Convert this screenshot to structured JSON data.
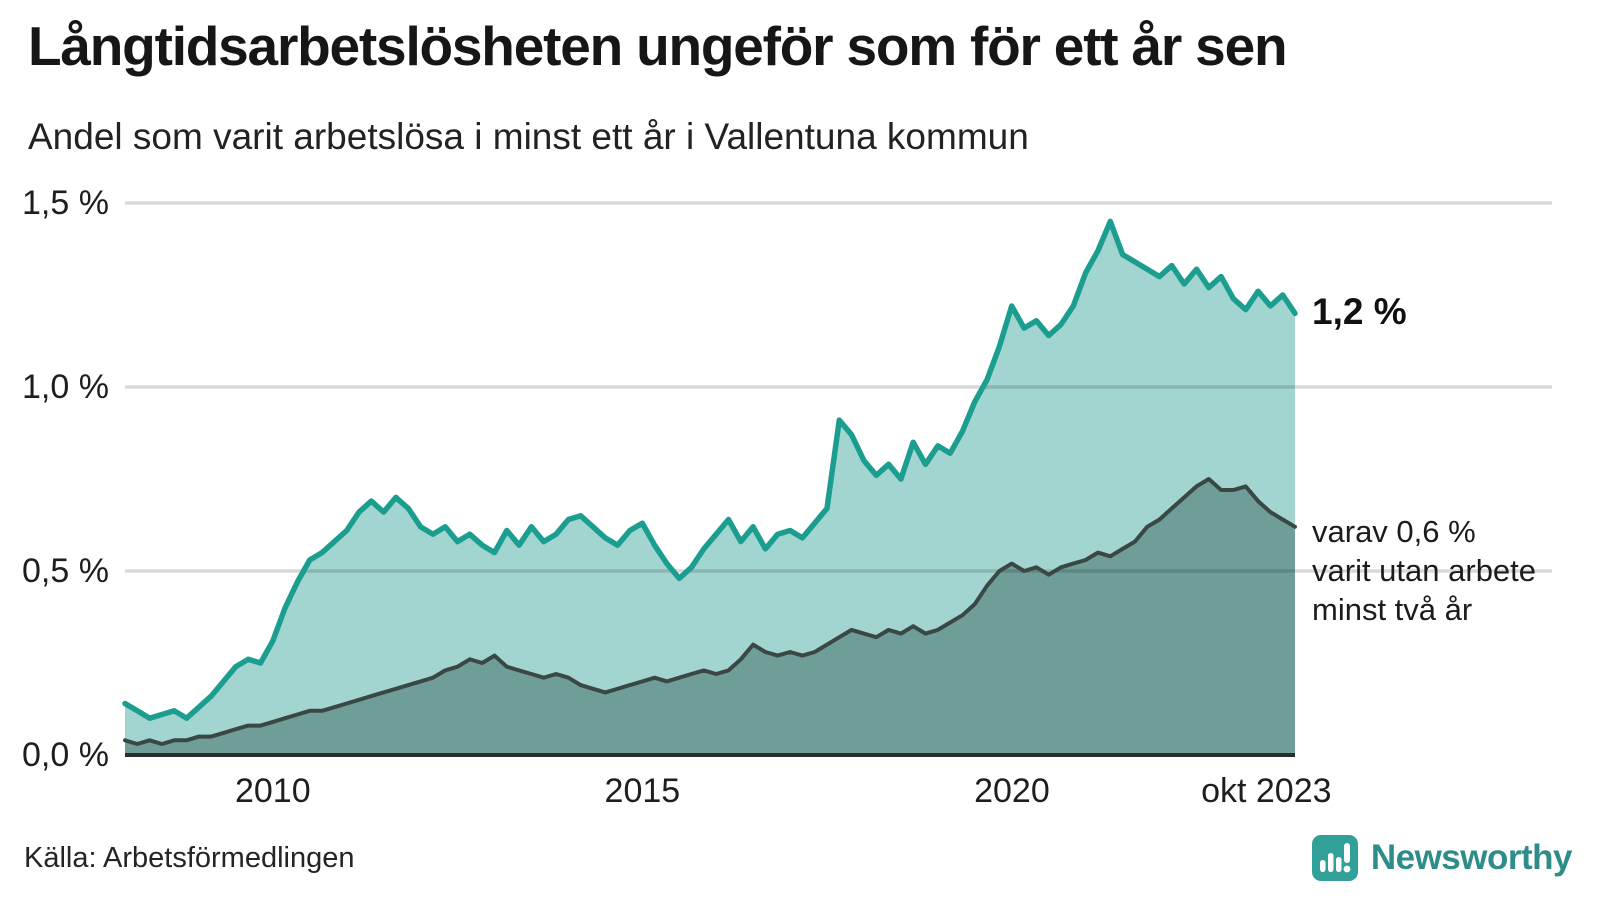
{
  "header": {
    "title": "Långtidsarbetslösheten ungeför som för ett år sen",
    "subtitle": "Andel som varit arbetslösa i minst ett år i Vallentuna kommun"
  },
  "chart_data": {
    "type": "area",
    "title": "Långtidsarbetslösheten ungeför som för ett år sen",
    "subtitle": "Andel som varit arbetslösa i minst ett år i Vallentuna kommun",
    "unit": "%",
    "grid": "horizontal",
    "legend": "none",
    "ylim": [
      0,
      1.5
    ],
    "x_domain_years": [
      2008.0,
      2023.83
    ],
    "y_ticks": [
      {
        "value": 0.0,
        "label": "0,0 %"
      },
      {
        "value": 0.5,
        "label": "0,5 %"
      },
      {
        "value": 1.0,
        "label": "1,0 %"
      },
      {
        "value": 1.5,
        "label": "1,5 %"
      }
    ],
    "x_ticks": [
      {
        "value": 2010,
        "label": "2010"
      },
      {
        "value": 2015,
        "label": "2015"
      },
      {
        "value": 2020,
        "label": "2020"
      },
      {
        "value": 2023.83,
        "label": "okt 2023",
        "align": "end"
      }
    ],
    "colors": {
      "total_line": "#1b9e8f",
      "total_fill": "#a3d5d0",
      "subset_line": "#3a4845",
      "subset_fill": "#6f9e99",
      "gridline": "rgba(0,0,0,0.15)",
      "baseline": "#2b2b2b"
    },
    "series": [
      {
        "name": "Arbetslösa minst ett år",
        "role": "total",
        "points_every_n_months": 2,
        "start": "2008-01",
        "end": "2023-10",
        "values": [
          0.14,
          0.12,
          0.1,
          0.11,
          0.12,
          0.1,
          0.13,
          0.16,
          0.2,
          0.24,
          0.26,
          0.25,
          0.31,
          0.4,
          0.47,
          0.53,
          0.55,
          0.58,
          0.61,
          0.66,
          0.69,
          0.66,
          0.7,
          0.67,
          0.62,
          0.6,
          0.62,
          0.58,
          0.6,
          0.57,
          0.55,
          0.61,
          0.57,
          0.62,
          0.58,
          0.6,
          0.64,
          0.65,
          0.62,
          0.59,
          0.57,
          0.61,
          0.63,
          0.57,
          0.52,
          0.48,
          0.51,
          0.56,
          0.6,
          0.64,
          0.58,
          0.62,
          0.56,
          0.6,
          0.61,
          0.59,
          0.63,
          0.67,
          0.91,
          0.87,
          0.8,
          0.76,
          0.79,
          0.75,
          0.85,
          0.79,
          0.84,
          0.82,
          0.88,
          0.96,
          1.02,
          1.11,
          1.22,
          1.16,
          1.18,
          1.14,
          1.17,
          1.22,
          1.31,
          1.37,
          1.45,
          1.36,
          1.34,
          1.32,
          1.3,
          1.33,
          1.28,
          1.32,
          1.27,
          1.3,
          1.24,
          1.21,
          1.26,
          1.22,
          1.25,
          1.2
        ]
      },
      {
        "name": "Varav utan arbete minst två år",
        "role": "subset",
        "points_every_n_months": 2,
        "start": "2008-01",
        "end": "2023-10",
        "values": [
          0.04,
          0.03,
          0.04,
          0.03,
          0.04,
          0.04,
          0.05,
          0.05,
          0.06,
          0.07,
          0.08,
          0.08,
          0.09,
          0.1,
          0.11,
          0.12,
          0.12,
          0.13,
          0.14,
          0.15,
          0.16,
          0.17,
          0.18,
          0.19,
          0.2,
          0.21,
          0.23,
          0.24,
          0.26,
          0.25,
          0.27,
          0.24,
          0.23,
          0.22,
          0.21,
          0.22,
          0.21,
          0.19,
          0.18,
          0.17,
          0.18,
          0.19,
          0.2,
          0.21,
          0.2,
          0.21,
          0.22,
          0.23,
          0.22,
          0.23,
          0.26,
          0.3,
          0.28,
          0.27,
          0.28,
          0.27,
          0.28,
          0.3,
          0.32,
          0.34,
          0.33,
          0.32,
          0.34,
          0.33,
          0.35,
          0.33,
          0.34,
          0.36,
          0.38,
          0.41,
          0.46,
          0.5,
          0.52,
          0.5,
          0.51,
          0.49,
          0.51,
          0.52,
          0.53,
          0.55,
          0.54,
          0.56,
          0.58,
          0.62,
          0.64,
          0.67,
          0.7,
          0.73,
          0.75,
          0.72,
          0.72,
          0.73,
          0.69,
          0.66,
          0.64,
          0.62
        ]
      }
    ],
    "annotations": {
      "end_value_label": "1,2 %",
      "subset_label_lines": [
        "varav 0,6 %",
        "varit utan arbete",
        "minst två år"
      ]
    }
  },
  "footer": {
    "source_label": "Källa: Arbetsförmedlingen",
    "brand_name": "Newsworthy",
    "brand_color": "#2e8d8a",
    "brand_icon_bg": "#31a099"
  }
}
